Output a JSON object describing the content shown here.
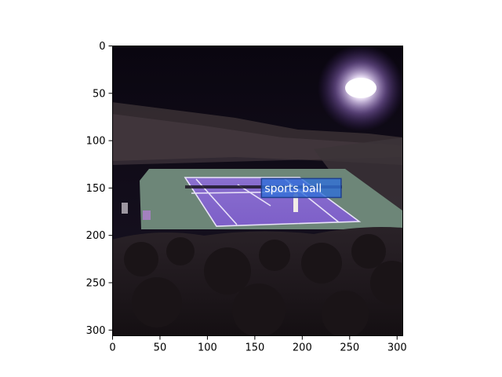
{
  "chart_data": {
    "type": "image",
    "title": "",
    "xlabel": "",
    "ylabel": "",
    "xlim": [
      0,
      306
    ],
    "ylim": [
      306,
      0
    ],
    "x_ticks": [
      0,
      50,
      100,
      150,
      200,
      250,
      300
    ],
    "y_ticks": [
      0,
      50,
      100,
      150,
      200,
      250,
      300
    ],
    "image_content": "night tennis match on a purple court with a crowd in the foreground and stadium lights",
    "detections": [
      {
        "label": "sports ball",
        "x": 157,
        "y": 140,
        "width": 84,
        "height": 20,
        "color": "#2f6fd8"
      }
    ]
  }
}
